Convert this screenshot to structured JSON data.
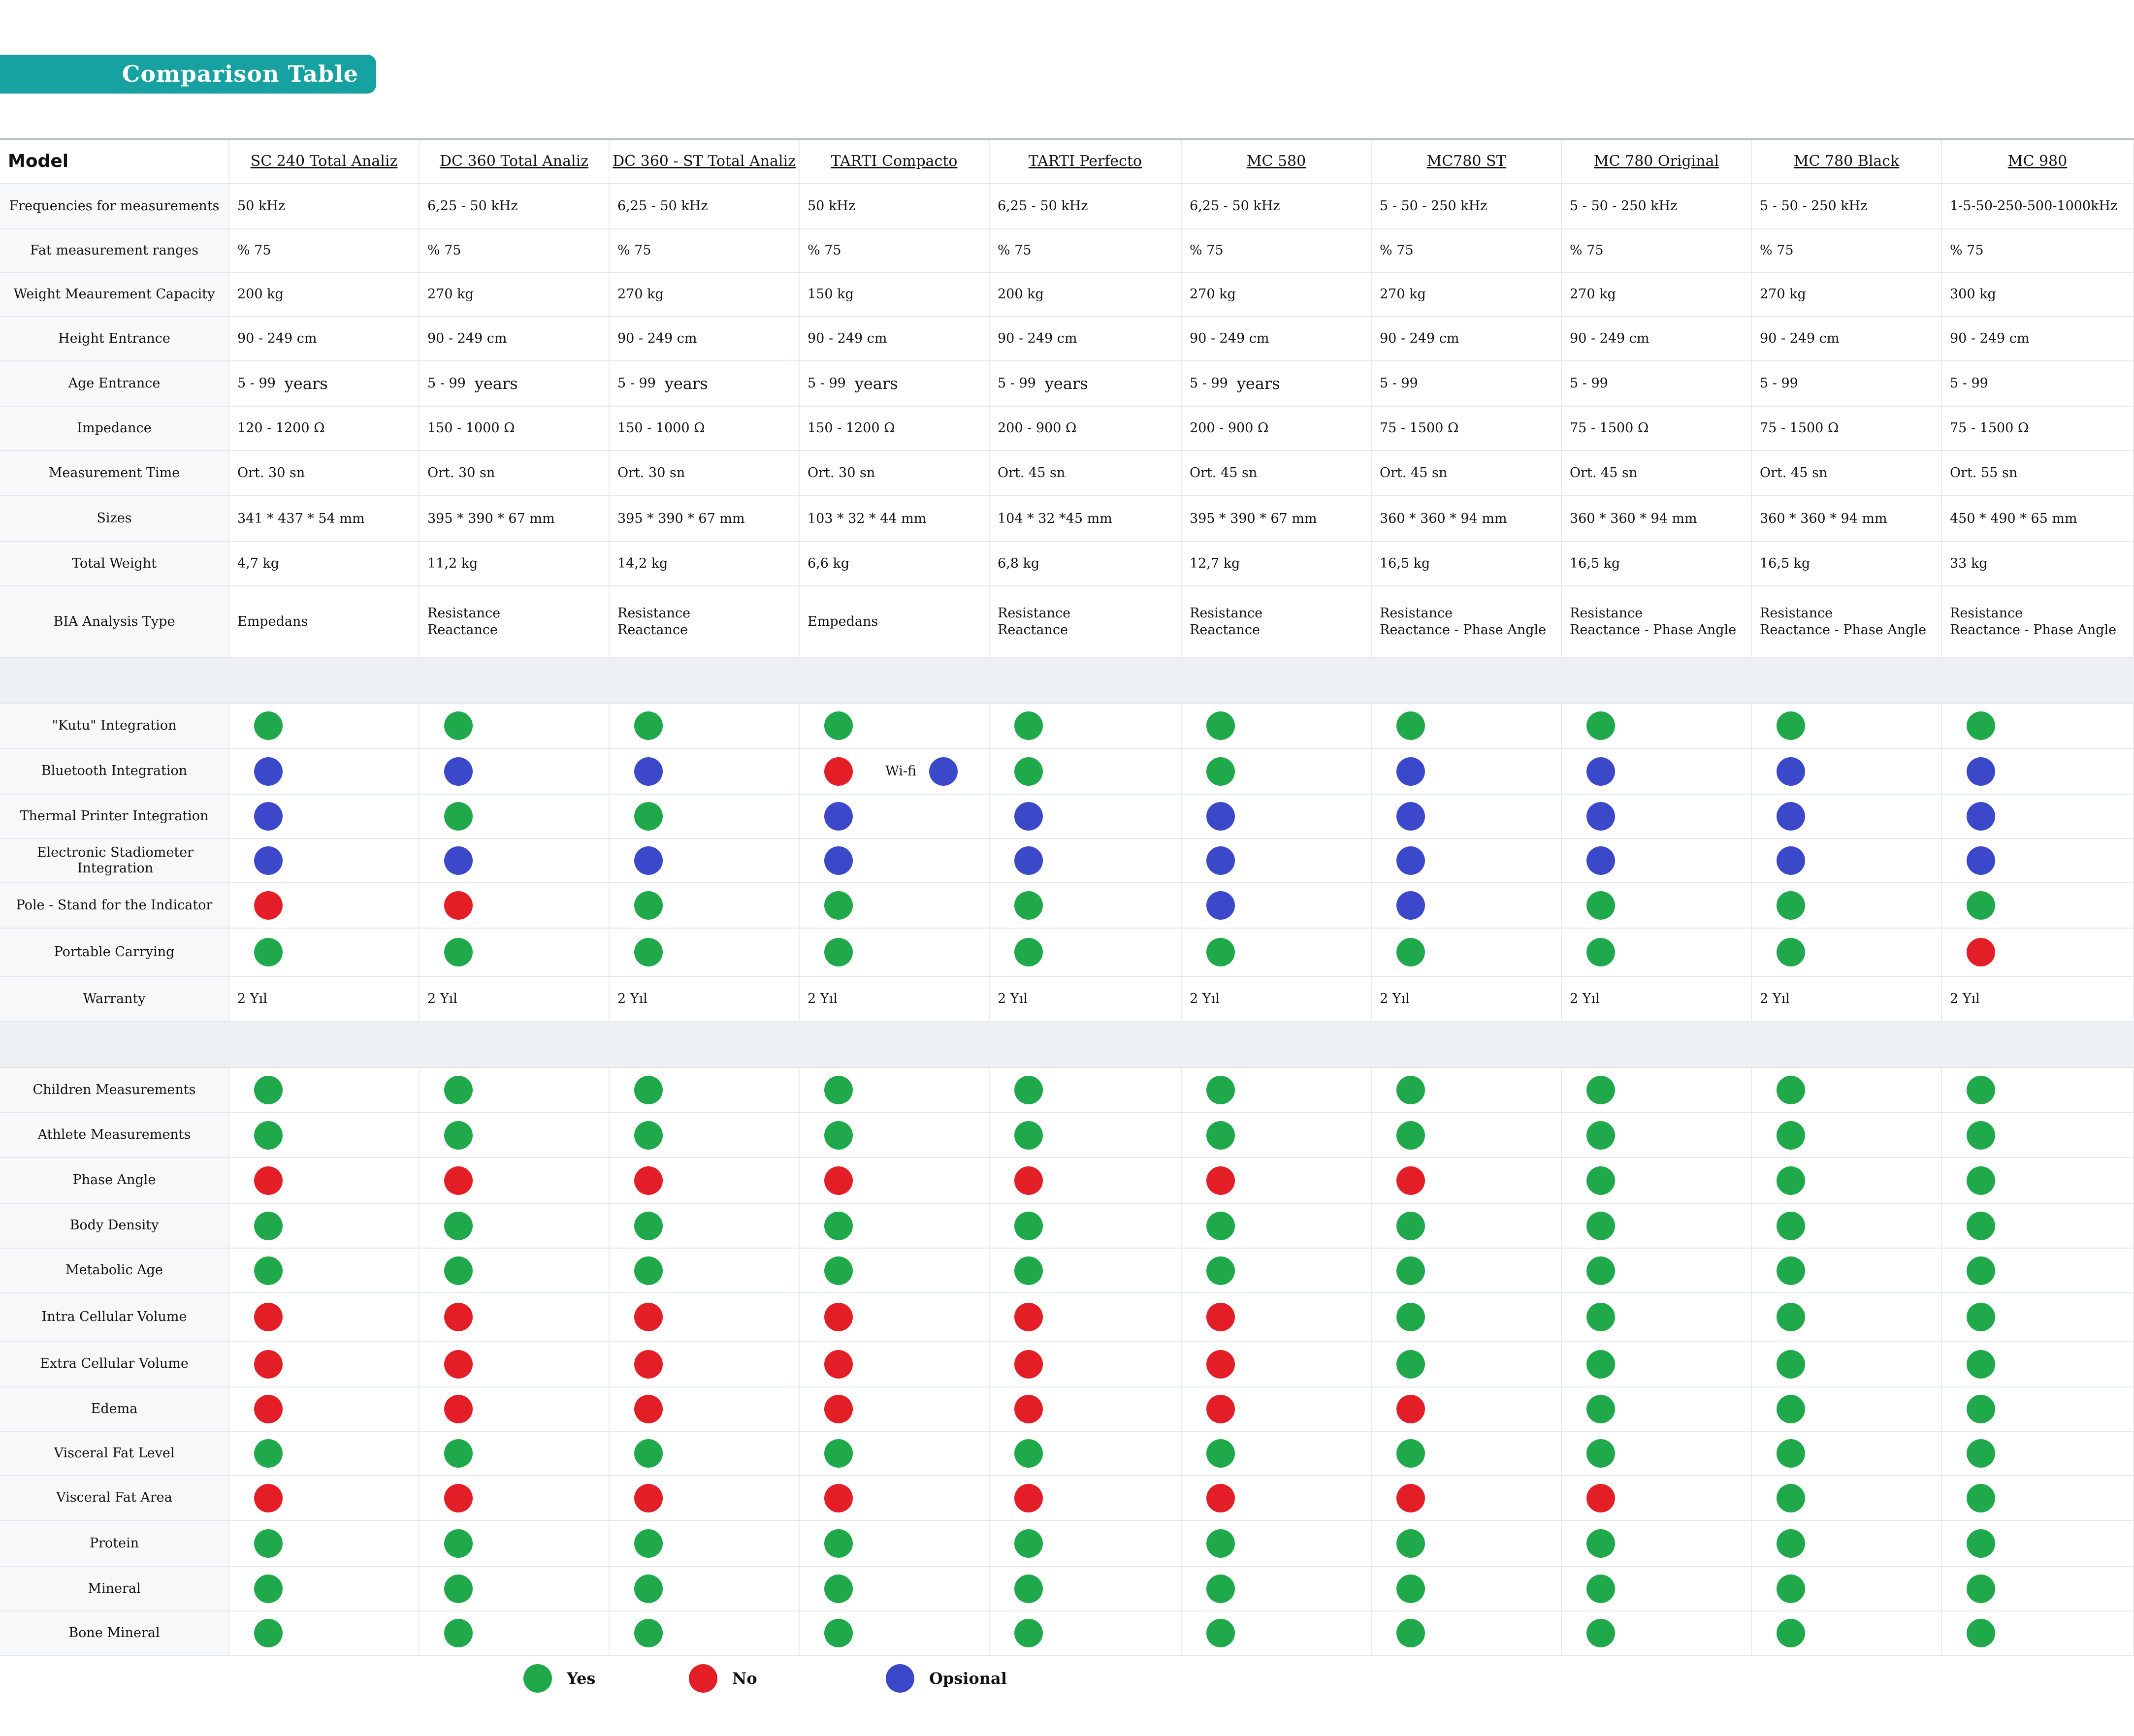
{
  "title": "Comparison Table",
  "colors": {
    "accent": "#17a1a1",
    "yes": "#1fa94a",
    "no": "#e41e26",
    "optional": "#3a48c9"
  },
  "header_label": "Model",
  "models": [
    "SC 240 Total Analiz",
    "DC 360 Total Analiz",
    "DC 360 - ST Total Analiz",
    "TARTI  Compacto",
    "TARTI  Perfecto",
    "MC 580",
    "MC780 ST",
    "MC 780 Original",
    "MC 780 Black",
    "MC 980"
  ],
  "spec_rows": [
    {
      "label": "Frequencies for measurements",
      "values": [
        "50 kHz",
        "6,25 - 50 kHz",
        "6,25 - 50 kHz",
        "50 kHz",
        "6,25 - 50 kHz",
        "6,25 - 50 kHz",
        "5 - 50 - 250 kHz",
        "5 - 50 - 250 kHz",
        "5 - 50 - 250 kHz",
        "1-5-50-250-500-1000kHz"
      ]
    },
    {
      "label": "Fat measurement ranges",
      "values": [
        "% 75",
        "% 75",
        "% 75",
        "% 75",
        "% 75",
        "% 75",
        "% 75",
        "% 75",
        "% 75",
        "% 75"
      ]
    },
    {
      "label": "Weight Meaurement Capacity",
      "values": [
        "200 kg",
        "270 kg",
        "270 kg",
        "150 kg",
        "200 kg",
        "270 kg",
        "270 kg",
        "270 kg",
        "270 kg",
        "300 kg"
      ]
    },
    {
      "label": "Height Entrance",
      "values": [
        "90 - 249 cm",
        "90 - 249 cm",
        "90 - 249 cm",
        "90 - 249 cm",
        "90 - 249 cm",
        "90 - 249 cm",
        "90 - 249 cm",
        "90 - 249 cm",
        "90 - 249 cm",
        "90 - 249 cm"
      ]
    },
    {
      "label": "Age Entrance",
      "values": [
        "5 - 99",
        "5 - 99",
        "5 - 99",
        "5 - 99",
        "5 - 99",
        "5 - 99",
        "5 - 99",
        "5 - 99",
        "5 - 99",
        "5 - 99"
      ],
      "suffix": [
        "years",
        "years",
        "years",
        "years",
        "years",
        "years",
        "",
        "",
        "",
        ""
      ]
    },
    {
      "label": "Impedance",
      "values": [
        "120 - 1200 Ω",
        "150 - 1000 Ω",
        "150 - 1000 Ω",
        "150 - 1200 Ω",
        "200 - 900  Ω",
        "200 - 900  Ω",
        "75 - 1500 Ω",
        "75 - 1500 Ω",
        "75 - 1500 Ω",
        "75 - 1500 Ω"
      ]
    },
    {
      "label": "Measurement Time",
      "values": [
        "Ort. 30 sn",
        "Ort. 30 sn",
        "Ort. 30 sn",
        "Ort. 30 sn",
        "Ort. 45 sn",
        "Ort. 45 sn",
        "Ort. 45 sn",
        "Ort. 45 sn",
        "Ort. 45 sn",
        "Ort. 55 sn"
      ]
    },
    {
      "label": "Sizes",
      "values": [
        "341 * 437 * 54 mm",
        "395 * 390 * 67 mm",
        "395 * 390 * 67 mm",
        "103 * 32 * 44 mm",
        "104 * 32 *45 mm",
        "395 * 390 * 67 mm",
        "360 * 360 * 94 mm",
        "360 * 360 * 94 mm",
        "360 * 360 * 94 mm",
        "450 * 490 * 65 mm"
      ]
    },
    {
      "label": "Total Weight",
      "values": [
        "4,7 kg",
        "11,2 kg",
        "14,2 kg",
        "6,6 kg",
        "6,8 kg",
        "12,7 kg",
        "16,5 kg",
        "16,5 kg",
        "16,5 kg",
        "33 kg"
      ]
    },
    {
      "label": "BIA Analysis Type",
      "lines": [
        [
          "Empedans"
        ],
        [
          "Resistance",
          "Reactance"
        ],
        [
          "Resistance",
          "Reactance"
        ],
        [
          "Empedans"
        ],
        [
          "Resistance",
          "Reactance"
        ],
        [
          "Resistance",
          "Reactance"
        ],
        [
          "Resistance",
          "Reactance  - Phase Angle"
        ],
        [
          "Resistance",
          "Reactance  - Phase Angle"
        ],
        [
          "Resistance",
          "Reactance  - Phase Angle"
        ],
        [
          "Resistance",
          "Reactance  - Phase Angle"
        ]
      ]
    }
  ],
  "integration_rows": [
    {
      "label": "\"Kutu\" Integration",
      "status": [
        "yes",
        "yes",
        "yes",
        "yes",
        "yes",
        "yes",
        "yes",
        "yes",
        "yes",
        "yes"
      ]
    },
    {
      "label": "Bluetooth Integration",
      "status": [
        "opt",
        "opt",
        "opt",
        "no",
        "yes",
        "yes",
        "opt",
        "opt",
        "opt",
        "opt"
      ]
    },
    {
      "label": "Thermal Printer Integration",
      "status": [
        "opt",
        "yes",
        "yes",
        "opt",
        "opt",
        "opt",
        "opt",
        "opt",
        "opt",
        "opt"
      ]
    },
    {
      "label": "Electronic Stadiometer Integration",
      "status": [
        "opt",
        "opt",
        "opt",
        "opt",
        "opt",
        "opt",
        "opt",
        "opt",
        "opt",
        "opt"
      ]
    },
    {
      "label": "Pole - Stand for the Indicator",
      "status": [
        "no",
        "no",
        "yes",
        "yes",
        "yes",
        "opt",
        "opt",
        "yes",
        "yes",
        "yes"
      ]
    },
    {
      "label": "Portable Carrying",
      "status": [
        "yes",
        "yes",
        "yes",
        "yes",
        "yes",
        "yes",
        "yes",
        "yes",
        "yes",
        "no"
      ]
    }
  ],
  "wifi": {
    "label": "Wi-fi",
    "status": "opt"
  },
  "warranty": {
    "label": "Warranty",
    "values": [
      "2 Yıl",
      "2 Yıl",
      "2 Yıl",
      "2 Yıl",
      "2 Yıl",
      "2 Yıl",
      "2 Yıl",
      "2 Yıl",
      "2 Yıl",
      "2 Yıl"
    ]
  },
  "feature_rows": [
    {
      "label": "Children Measurements",
      "status": [
        "yes",
        "yes",
        "yes",
        "yes",
        "yes",
        "yes",
        "yes",
        "yes",
        "yes",
        "yes"
      ]
    },
    {
      "label": "Athlete Measurements",
      "status": [
        "yes",
        "yes",
        "yes",
        "yes",
        "yes",
        "yes",
        "yes",
        "yes",
        "yes",
        "yes"
      ]
    },
    {
      "label": "Phase Angle",
      "status": [
        "no",
        "no",
        "no",
        "no",
        "no",
        "no",
        "no",
        "yes",
        "yes",
        "yes"
      ]
    },
    {
      "label": "Body Density",
      "status": [
        "yes",
        "yes",
        "yes",
        "yes",
        "yes",
        "yes",
        "yes",
        "yes",
        "yes",
        "yes"
      ]
    },
    {
      "label": "Metabolic Age",
      "status": [
        "yes",
        "yes",
        "yes",
        "yes",
        "yes",
        "yes",
        "yes",
        "yes",
        "yes",
        "yes"
      ]
    },
    {
      "label": "Intra Cellular Volume",
      "status": [
        "no",
        "no",
        "no",
        "no",
        "no",
        "no",
        "yes",
        "yes",
        "yes",
        "yes"
      ]
    },
    {
      "label": "Extra Cellular Volume",
      "status": [
        "no",
        "no",
        "no",
        "no",
        "no",
        "no",
        "yes",
        "yes",
        "yes",
        "yes"
      ]
    },
    {
      "label": "Edema",
      "status": [
        "no",
        "no",
        "no",
        "no",
        "no",
        "no",
        "no",
        "yes",
        "yes",
        "yes"
      ]
    },
    {
      "label": "Visceral Fat Level",
      "status": [
        "yes",
        "yes",
        "yes",
        "yes",
        "yes",
        "yes",
        "yes",
        "yes",
        "yes",
        "yes"
      ]
    },
    {
      "label": "Visceral Fat Area",
      "status": [
        "no",
        "no",
        "no",
        "no",
        "no",
        "no",
        "no",
        "no",
        "yes",
        "yes"
      ]
    },
    {
      "label": "Protein",
      "status": [
        "yes",
        "yes",
        "yes",
        "yes",
        "yes",
        "yes",
        "yes",
        "yes",
        "yes",
        "yes"
      ]
    },
    {
      "label": "Mineral",
      "status": [
        "yes",
        "yes",
        "yes",
        "yes",
        "yes",
        "yes",
        "yes",
        "yes",
        "yes",
        "yes"
      ]
    },
    {
      "label": "Bone Mineral",
      "status": [
        "yes",
        "yes",
        "yes",
        "yes",
        "yes",
        "yes",
        "yes",
        "yes",
        "yes",
        "yes"
      ]
    }
  ],
  "legend": {
    "yes": "Yes",
    "no": "No",
    "optional": "Opsional"
  }
}
